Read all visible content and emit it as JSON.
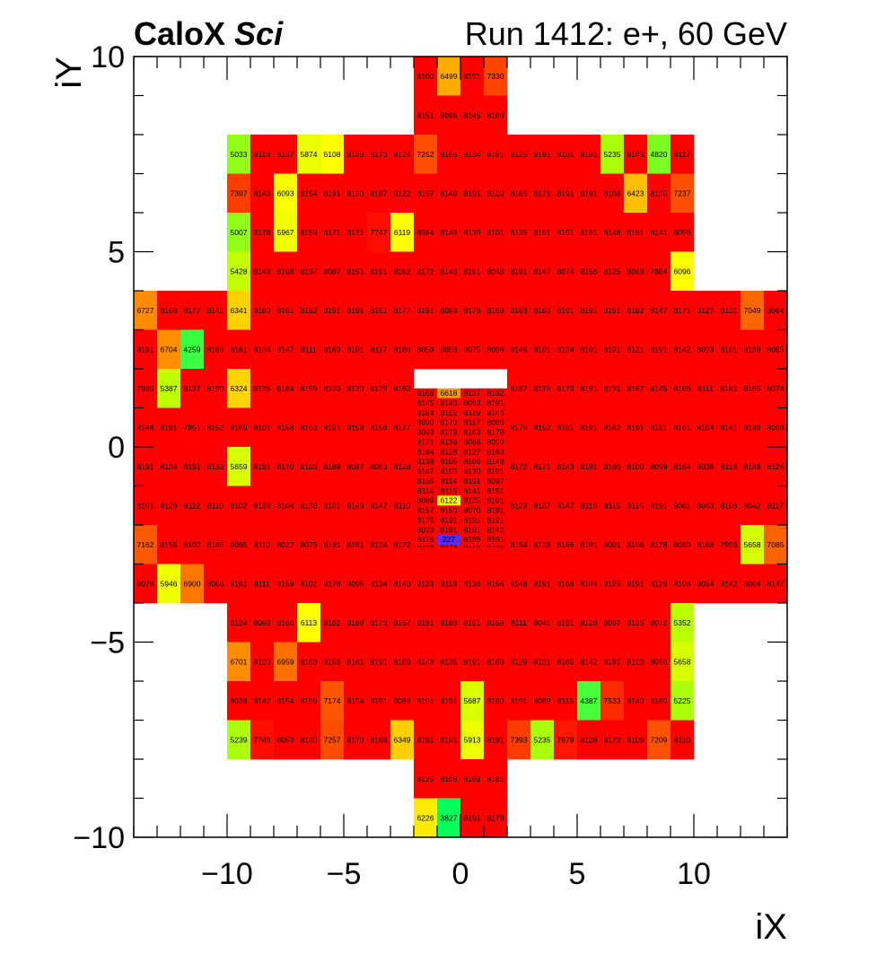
{
  "header": {
    "brand": "CaloX",
    "brand_suffix": "Sci",
    "run_label": "Run 1412: e+, 60 GeV"
  },
  "chart_data": {
    "type": "heatmap",
    "xlabel": "iX",
    "ylabel": "iY",
    "xlim": [
      -14,
      14
    ],
    "ylim": [
      -10,
      10
    ],
    "x_ticks": [
      -10,
      -5,
      0,
      5,
      10
    ],
    "y_ticks": [
      -10,
      -5,
      0,
      5,
      10
    ],
    "x_tick_labels": [
      "−10",
      "−5",
      "0",
      "5",
      "10"
    ],
    "y_tick_labels": [
      "−10",
      "−5",
      "0",
      "5",
      "10"
    ],
    "rows": [
      {
        "y": 9,
        "x0": -2,
        "values": [
          8100,
          6499,
          8191,
          7330
        ]
      },
      {
        "y": 8,
        "x0": -2,
        "values": [
          8151,
          8066,
          8145,
          8166
        ]
      },
      {
        "y": 7,
        "x0": -10,
        "values": [
          5033,
          8118,
          8137,
          5874,
          6108,
          8139,
          8173,
          8124,
          7252,
          8166,
          8134,
          8191,
          8125,
          8191,
          8191,
          8191,
          5235,
          8143,
          4820,
          8117
        ]
      },
      {
        "y": 6,
        "x0": -10,
        "values": [
          7397,
          8143,
          6093,
          8154,
          8191,
          8130,
          8187,
          8122,
          8157,
          8149,
          8191,
          8120,
          8165,
          8171,
          8191,
          8191,
          8106,
          6423,
          8135,
          7237
        ]
      },
      {
        "y": 5,
        "x0": -10,
        "values": [
          5007,
          8178,
          5967,
          8159,
          8171,
          8171,
          7747,
          6119,
          8084,
          8149,
          8130,
          8101,
          8135,
          8191,
          8191,
          8191,
          8148,
          8191,
          8141,
          8098
        ]
      },
      {
        "y": 4,
        "x0": -10,
        "values": [
          5428,
          8148,
          8168,
          8137,
          8067,
          8151,
          8191,
          8162,
          8172,
          8148,
          8191,
          8048,
          8191,
          8147,
          8074,
          8156,
          8125,
          8069,
          7884,
          6096
        ]
      },
      {
        "y": 3,
        "x0": -14,
        "values": [
          6727,
          8168,
          8177,
          8141,
          6341,
          8180,
          8161,
          8152,
          8191,
          8191,
          8151,
          8177,
          8191,
          8088,
          8173,
          8189,
          8188,
          8183,
          8191,
          8191,
          8191,
          8182,
          8147,
          8171,
          8127,
          8131,
          7049,
          8084
        ]
      },
      {
        "y": 2,
        "x0": -14,
        "values": [
          8191,
          6704,
          4259,
          8166,
          8161,
          8136,
          8147,
          8111,
          8169,
          8191,
          8117,
          8186,
          8059,
          8058,
          8075,
          8098,
          8146,
          8191,
          8134,
          8191,
          8191,
          8121,
          8191,
          8142,
          8093,
          8191,
          8138,
          8085
        ]
      },
      {
        "y": 1,
        "x0": -14,
        "values": [
          7985,
          5387,
          8137,
          8190,
          6324,
          8135,
          8184,
          8159,
          8123,
          8120,
          8129,
          8162,
          0,
          0,
          0,
          0,
          8187,
          8176,
          8170,
          8191,
          8191,
          8167,
          8145,
          8166,
          8111,
          8181,
          8155,
          8074
        ]
      },
      {
        "y": 0,
        "x0": -14,
        "values": [
          8148,
          8191,
          7851,
          8152,
          8189,
          8101,
          8158,
          8169,
          8191,
          8158,
          8156,
          8177,
          0,
          0,
          0,
          0,
          8175,
          8152,
          8191,
          8191,
          8162,
          8191,
          8191,
          8161,
          8104,
          8141,
          8149,
          8098
        ]
      },
      {
        "y": -1,
        "x0": -14,
        "values": [
          8191,
          8134,
          8191,
          8133,
          5659,
          8191,
          8170,
          8105,
          8189,
          8087,
          8083,
          8128,
          0,
          0,
          0,
          0,
          8172,
          8171,
          8143,
          8191,
          8166,
          8100,
          8099,
          8164,
          8038,
          8113,
          8148,
          8124
        ]
      },
      {
        "y": -2,
        "x0": -14,
        "values": [
          8191,
          8129,
          8112,
          8110,
          8102,
          8138,
          8104,
          8138,
          8131,
          8149,
          8147,
          8110,
          0,
          0,
          0,
          0,
          8123,
          8137,
          8147,
          8116,
          8115,
          8115,
          8191,
          8061,
          8063,
          8108,
          8042,
          8117
        ]
      },
      {
        "y": -3,
        "x0": -14,
        "values": [
          7162,
          8155,
          8102,
          8185,
          8065,
          8110,
          8027,
          8079,
          8191,
          8181,
          8124,
          8172,
          8169,
          8191,
          8173,
          8101,
          8154,
          8128,
          8166,
          8191,
          8001,
          8106,
          8178,
          8089,
          8168,
          7996,
          5658,
          7085
        ]
      },
      {
        "y": -4,
        "x0": -14,
        "values": [
          8078,
          5946,
          6900,
          8066,
          8161,
          8111,
          8159,
          8101,
          8178,
          8095,
          8134,
          8140,
          8123,
          8118,
          8136,
          8156,
          8148,
          8191,
          8166,
          8144,
          8125,
          8191,
          8129,
          8103,
          8084,
          8142,
          8064,
          8147
        ]
      },
      {
        "y": -5,
        "x0": -10,
        "values": [
          8124,
          8093,
          8186,
          6113,
          8182,
          8188,
          8173,
          8157,
          8191,
          8183,
          8191,
          8159,
          8111,
          8041,
          8191,
          8128,
          8097,
          8135,
          8072,
          5352
        ]
      },
      {
        "y": -6,
        "x0": -10,
        "values": [
          6701,
          8120,
          6959,
          8168,
          8156,
          8161,
          8191,
          8189,
          8148,
          8135,
          8191,
          8180,
          8129,
          8131,
          8185,
          8142,
          8191,
          8123,
          8056,
          5658
        ]
      },
      {
        "y": -7,
        "x0": -10,
        "values": [
          8038,
          8142,
          8154,
          8159,
          7174,
          8154,
          8191,
          8088,
          8191,
          8191,
          5687,
          8180,
          8191,
          8089,
          8115,
          4387,
          7533,
          8140,
          8180,
          5225
        ]
      },
      {
        "y": -8,
        "x0": -10,
        "values": [
          5239,
          7746,
          8053,
          8140,
          7257,
          8170,
          8166,
          6349,
          8191,
          8191,
          5913,
          8191,
          7393,
          5235,
          7679,
          8128,
          8173,
          8106,
          7209,
          8110
        ]
      },
      {
        "y": -9,
        "x0": -2,
        "values": [
          8126,
          8168,
          8169,
          8181
        ]
      },
      {
        "y": -10,
        "x0": -2,
        "values": [
          6226,
          3827,
          8191,
          8178
        ]
      }
    ],
    "fine_grid": {
      "x_start": -2,
      "y_top": 1.5,
      "cell_width": 1,
      "cell_height": 0.25,
      "rows": [
        [
          8168,
          6618,
          8137,
          8132
        ],
        [
          8145,
          8140,
          8093,
          8191
        ],
        [
          8184,
          8152,
          8119,
          8144
        ],
        [
          8090,
          8170,
          8117,
          8086
        ],
        [
          8093,
          8179,
          8163,
          8178
        ],
        [
          8171,
          8136,
          8086,
          8099
        ],
        [
          8164,
          8128,
          8127,
          8163
        ],
        [
          8138,
          8105,
          8186,
          8148
        ],
        [
          8147,
          8155,
          8130,
          8191
        ],
        [
          8155,
          8114,
          8191,
          8097
        ],
        [
          8114,
          8115,
          8141,
          8151
        ],
        [
          8089,
          6122,
          8135,
          8191
        ],
        [
          8157,
          8150,
          8070,
          8191
        ],
        [
          8135,
          8191,
          8191,
          8191
        ],
        [
          8093,
          8191,
          8191,
          8142
        ],
        [
          8118,
          227,
          8185,
          8191
        ]
      ]
    },
    "zmin": 0,
    "zmax": 8191,
    "palette": [
      "#6020ff",
      "#00ff60",
      "#c0ff00",
      "#ffff00",
      "#ffa000",
      "#ff4000",
      "#ff0000"
    ]
  }
}
